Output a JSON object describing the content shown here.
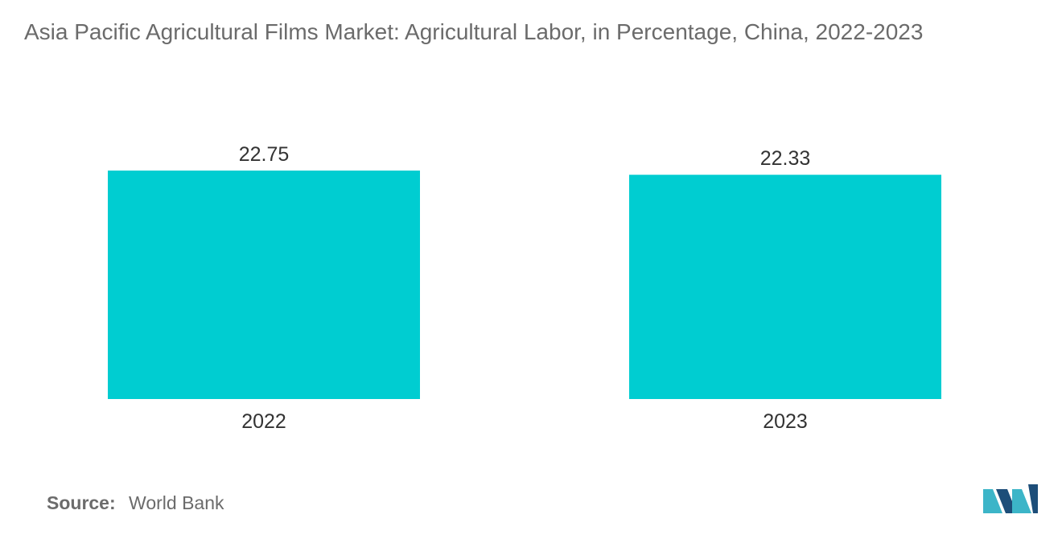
{
  "title": "Asia Pacific Agricultural Films Market: Agricultural Labor, in Percentage, China, 2022-2023",
  "source": {
    "label": "Source:",
    "value": "World Bank"
  },
  "logo_icon": "mordor-intelligence-logo-icon",
  "colors": {
    "bar": "#00cdd1",
    "text": "#6b6b6b",
    "logo_dark": "#1d4e79",
    "logo_light": "#3cb5c8"
  },
  "chart_data": {
    "type": "bar",
    "categories": [
      "2022",
      "2023"
    ],
    "values": [
      22.75,
      22.33
    ],
    "data_labels": [
      "22.75",
      "22.33"
    ],
    "ylim": [
      0,
      22.75
    ],
    "grid": false,
    "legend": "none"
  }
}
